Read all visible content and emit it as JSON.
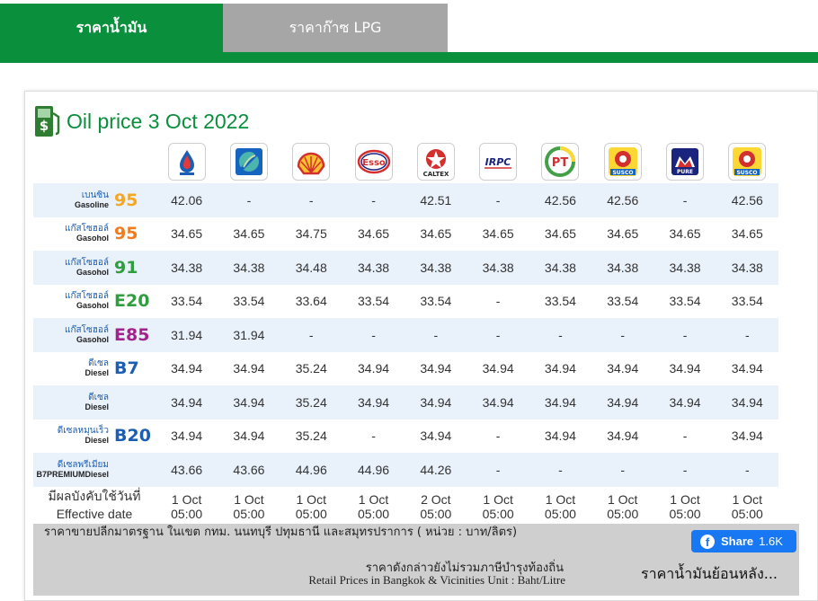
{
  "tabs": [
    {
      "label": "ราคาน้ำมัน",
      "active": true
    },
    {
      "label": "ราคาก๊าซ LPG",
      "active": false
    }
  ],
  "heading": {
    "title": "Oil price 3 Oct 2022",
    "icon": "dollar-fuel-icon"
  },
  "stations": [
    {
      "name": "PTT Station",
      "icon": "ptt-logo"
    },
    {
      "name": "Bangchak",
      "icon": "bangchak-logo"
    },
    {
      "name": "Shell",
      "icon": "shell-logo"
    },
    {
      "name": "Esso",
      "icon": "esso-logo",
      "text": "Esso"
    },
    {
      "name": "Caltex",
      "icon": "caltex-logo",
      "text": "CALTEX"
    },
    {
      "name": "IRPC",
      "icon": "irpc-logo",
      "text": "IRPC"
    },
    {
      "name": "PT",
      "icon": "pt-logo",
      "text": "PT"
    },
    {
      "name": "Susco",
      "icon": "susco-logo",
      "text": "SUSCO"
    },
    {
      "name": "Pure",
      "icon": "pure-logo",
      "text": "PURE"
    },
    {
      "name": "Susco",
      "icon": "susco-logo",
      "text": "SUSCO"
    }
  ],
  "fuels": [
    {
      "th": "เบนซิน",
      "en": "Gasoline",
      "num": "95",
      "color": "#f5a623",
      "prices": [
        "42.06",
        "-",
        "-",
        "-",
        "42.51",
        "-",
        "42.56",
        "42.56",
        "-",
        "42.56"
      ]
    },
    {
      "th": "แก๊สโซฮอล์",
      "en": "Gasohol",
      "num": "95",
      "color": "#f07c1e",
      "prices": [
        "34.65",
        "34.65",
        "34.75",
        "34.65",
        "34.65",
        "34.65",
        "34.65",
        "34.65",
        "34.65",
        "34.65"
      ]
    },
    {
      "th": "แก๊สโซฮอล์",
      "en": "Gasohol",
      "num": "91",
      "color": "#2e9e3e",
      "prices": [
        "34.38",
        "34.38",
        "34.48",
        "34.38",
        "34.38",
        "34.38",
        "34.38",
        "34.38",
        "34.38",
        "34.38"
      ]
    },
    {
      "th": "แก๊สโซฮอล์",
      "en": "Gasohol",
      "num": "E20",
      "color": "#2e9e3e",
      "prices": [
        "33.54",
        "33.54",
        "33.64",
        "33.54",
        "33.54",
        "-",
        "33.54",
        "33.54",
        "33.54",
        "33.54"
      ]
    },
    {
      "th": "แก๊สโซฮอล์",
      "en": "Gasohol",
      "num": "E85",
      "color": "#a3238e",
      "prices": [
        "31.94",
        "31.94",
        "-",
        "-",
        "-",
        "-",
        "-",
        "-",
        "-",
        "-"
      ]
    },
    {
      "th": "ดีเซล",
      "en": "Diesel",
      "num": "B7",
      "color": "#1a5fb4",
      "prices": [
        "34.94",
        "34.94",
        "35.24",
        "34.94",
        "34.94",
        "34.94",
        "34.94",
        "34.94",
        "34.94",
        "34.94"
      ]
    },
    {
      "th": "ดีเซล",
      "en": "Diesel",
      "num": "",
      "color": "#1a5fb4",
      "prices": [
        "34.94",
        "34.94",
        "35.24",
        "34.94",
        "34.94",
        "34.94",
        "34.94",
        "34.94",
        "34.94",
        "34.94"
      ]
    },
    {
      "th": "ดีเซลหมุนเร็ว",
      "en": "Diesel",
      "num": "B20",
      "color": "#1a5fb4",
      "prices": [
        "34.94",
        "34.94",
        "35.24",
        "-",
        "34.94",
        "-",
        "34.94",
        "34.94",
        "-",
        "34.94"
      ]
    },
    {
      "th": "ดีเซลพรีเมียม",
      "en": "B7PREMIUMDiesel",
      "num": "",
      "color": "#1a5fb4",
      "prices": [
        "43.66",
        "43.66",
        "44.96",
        "44.96",
        "44.26",
        "-",
        "-",
        "-",
        "-",
        "-"
      ]
    }
  ],
  "effective": {
    "label_th": "มีผลบังคับใช้วันที่",
    "label_en": "Effective date",
    "dates": [
      "1 Oct",
      "1 Oct",
      "1 Oct",
      "1 Oct",
      "2 Oct",
      "1 Oct",
      "1 Oct",
      "1 Oct",
      "1 Oct",
      "1 Oct"
    ],
    "times": [
      "05:00",
      "05:00",
      "05:00",
      "05:00",
      "05:00",
      "05:00",
      "05:00",
      "05:00",
      "05:00",
      "05:00"
    ]
  },
  "footer": {
    "note_th_1": "ราคาขายปลีกมาตรฐาน ในเขต กทม. นนทบุรี ปทุมธานี และสมุทรปราการ ( หน่วย : บาท/ลิตร)",
    "note_th_2": "ราคาดังกล่าวยังไม่รวมภาษีบำรุงท้องถิ่น",
    "note_en": "Retail Prices in Bangkok & Vicinities Unit : Baht/Litre",
    "share_label": "Share",
    "share_count": "1.6K",
    "history_link": "ราคาน้ำมันย้อนหลัง..."
  },
  "colors": {
    "brand_green": "#0a8f3c",
    "tab_inactive": "#a6a6a6",
    "row_alt": "#e9f1fb",
    "facebook": "#1877f2"
  }
}
